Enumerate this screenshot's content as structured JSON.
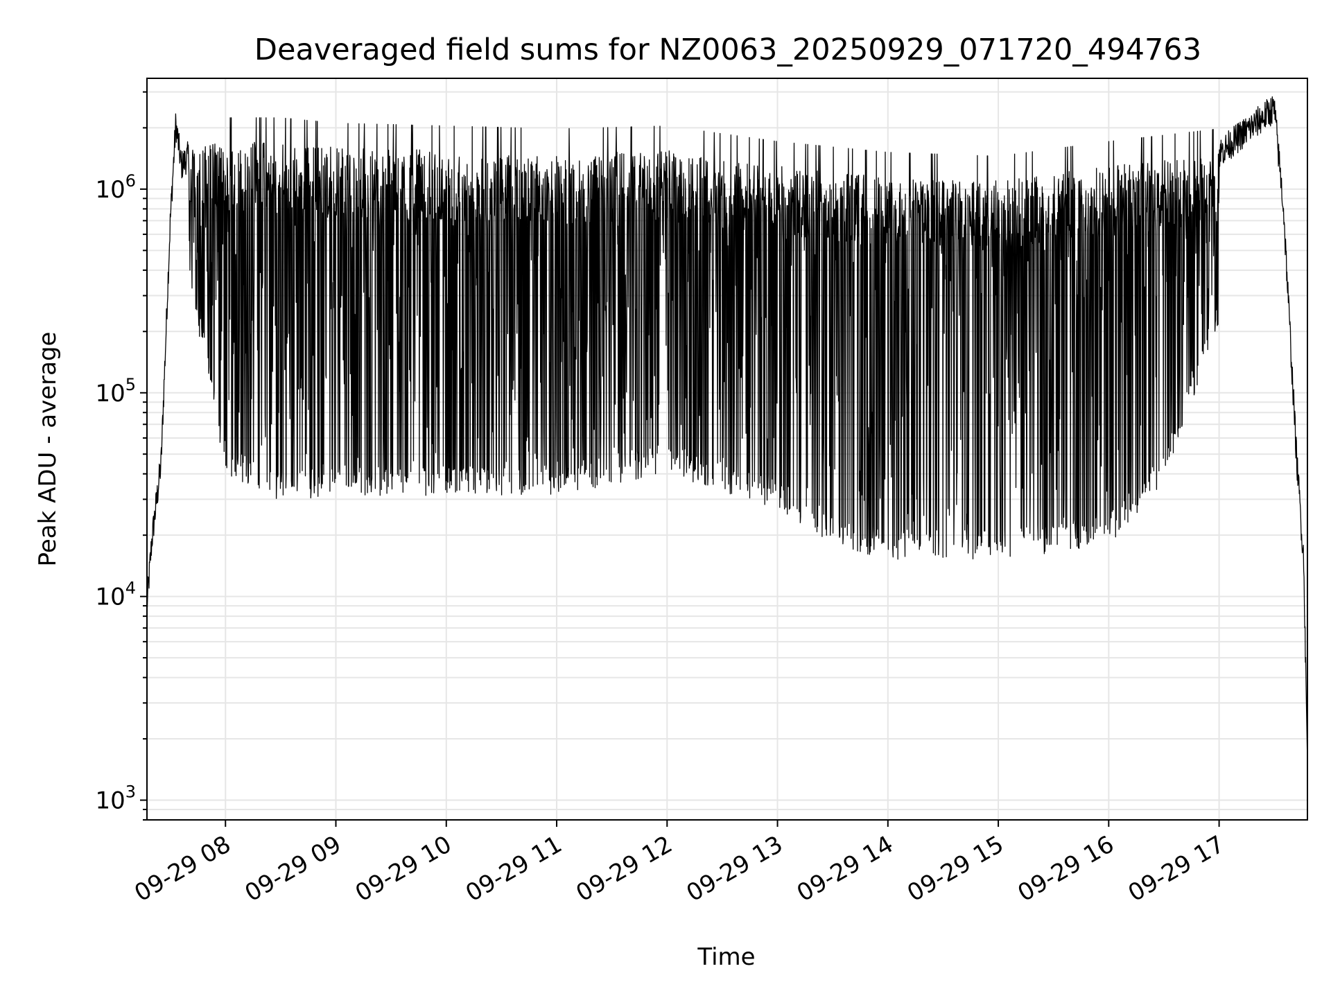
{
  "chart_data": {
    "type": "line",
    "title": "Deaveraged field sums for NZ0063_20250929_071720_494763",
    "xlabel": "Time",
    "ylabel": "Peak ADU - average",
    "yscale": "log",
    "ylim": [
      800,
      3500000
    ],
    "xlim": [
      "2025-09-29 07:17:20",
      "2025-09-29 17:48"
    ],
    "grid": true,
    "line_color": "#000000",
    "x_ticks": [
      "09-29 08",
      "09-29 09",
      "09-29 10",
      "09-29 11",
      "09-29 12",
      "09-29 13",
      "09-29 14",
      "09-29 15",
      "09-29 16",
      "09-29 17"
    ],
    "y_ticks": [
      {
        "value": 1000,
        "base": "10",
        "exp": "3"
      },
      {
        "value": 10000,
        "base": "10",
        "exp": "4"
      },
      {
        "value": 100000,
        "base": "10",
        "exp": "5"
      },
      {
        "value": 1000000,
        "base": "10",
        "exp": "6"
      }
    ],
    "series": [
      {
        "description_of_band": "upper envelope (peaks)",
        "x": [
          "2025-09-29 07:17:20",
          "2025-09-29 07:20",
          "2025-09-29 07:25",
          "2025-09-29 07:30",
          "2025-09-29 07:33",
          "2025-09-29 07:36",
          "2025-09-29 07:45",
          "2025-09-29 08:00",
          "2025-09-29 08:30",
          "2025-09-29 09:00",
          "2025-09-29 10:00",
          "2025-09-29 11:00",
          "2025-09-29 12:00",
          "2025-09-29 13:00",
          "2025-09-29 14:00",
          "2025-09-29 15:00",
          "2025-09-29 16:00",
          "2025-09-29 17:00",
          "2025-09-29 17:30",
          "2025-09-29 17:35",
          "2025-09-29 17:42",
          "2025-09-29 17:46",
          "2025-09-29 17:48"
        ],
        "values": [
          9000,
          19000,
          45000,
          700000,
          2100000,
          1300000,
          1700000,
          1700000,
          1700000,
          1600000,
          1550000,
          1500000,
          1550000,
          1300000,
          1150000,
          1100000,
          1300000,
          1500000,
          2500000,
          800000,
          50000,
          15000,
          1500
        ]
      },
      {
        "description_of_band": "lower envelope (dips)",
        "x": [
          "2025-09-29 07:40",
          "2025-09-29 08:00",
          "2025-09-29 08:30",
          "2025-09-29 09:00",
          "2025-09-29 10:00",
          "2025-09-29 11:00",
          "2025-09-29 12:00",
          "2025-09-29 13:00",
          "2025-09-29 13:30",
          "2025-09-29 14:00",
          "2025-09-29 15:00",
          "2025-09-29 16:00",
          "2025-09-29 16:30",
          "2025-09-29 17:00"
        ],
        "values": [
          400000,
          45000,
          33000,
          35000,
          35000,
          35000,
          45000,
          30000,
          20000,
          17000,
          17000,
          20000,
          40000,
          250000
        ]
      }
    ]
  }
}
